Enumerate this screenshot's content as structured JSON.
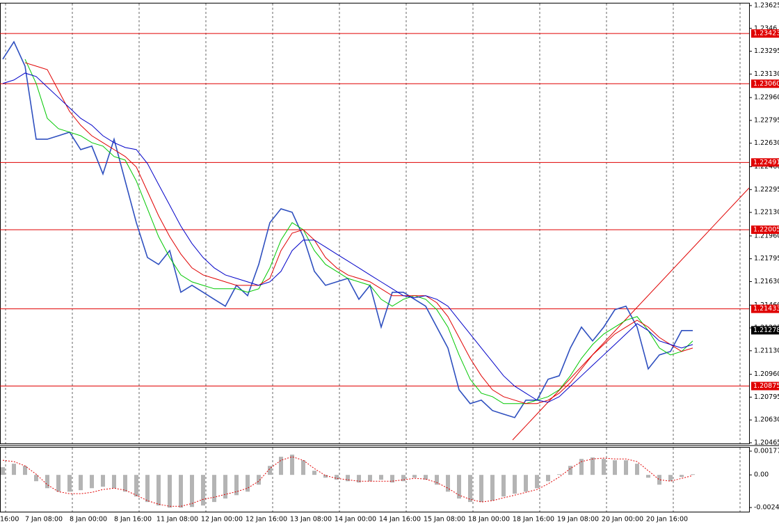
{
  "chart_data": {
    "type": "line",
    "x_labels": [
      "16:00",
      "7 Jan 08:00",
      "8 Jan 00:00",
      "8 Jan 16:00",
      "11 Jan 08:00",
      "12 Jan 00:00",
      "12 Jan 16:00",
      "13 Jan 08:00",
      "14 Jan 00:00",
      "14 Jan 16:00",
      "15 Jan 08:00",
      "18 Jan 00:00",
      "18 Jan 16:00",
      "19 Jan 08:00",
      "20 Jan 00:00",
      "20 Jan 16:00"
    ],
    "ylim": [
      1.2046,
      1.2364
    ],
    "yticks": [
      1.23625,
      1.2346,
      1.23295,
      {
        "value": 1.2313,
        "label": "1.23130"
      },
      {
        "value": 1.2296,
        "label": "1.22960"
      },
      1.22795,
      {
        "value": 1.2263,
        "label": "1.22630"
      },
      {
        "value": 1.2246,
        "label": "1.22460"
      },
      1.22295,
      {
        "value": 1.2213,
        "label": "1.22130"
      },
      {
        "value": 1.2196,
        "label": "1.21960"
      },
      1.21795,
      {
        "value": 1.2163,
        "label": "1.21630"
      },
      {
        "value": 1.2146,
        "label": "1.21460"
      },
      1.21295,
      {
        "value": 1.2113,
        "label": "1.21130"
      },
      {
        "value": 1.2096,
        "label": "1.20960"
      },
      1.20795,
      {
        "value": 1.2063,
        "label": "1.20630"
      },
      1.20465
    ],
    "levels": [
      1.23423,
      {
        "value": 1.2306,
        "label": "1.23060"
      },
      1.22491,
      1.22005,
      1.21433,
      1.20875
    ],
    "level_color": "#e00000",
    "current_price": 1.21278,
    "series": [
      {
        "color": "#2e4fbf",
        "values": [
          1.23238,
          1.23363,
          1.23187,
          1.22659,
          1.22659,
          1.22684,
          1.2271,
          1.22584,
          1.22609,
          1.22408,
          1.22659,
          1.22357,
          1.22056,
          1.21804,
          1.21754,
          1.21854,
          1.21553,
          1.21603,
          1.21553,
          1.21502,
          1.21452,
          1.21603,
          1.21528,
          1.21754,
          1.22056,
          1.22156,
          1.22131,
          1.21955,
          1.21704,
          1.21603,
          1.21628,
          1.21653,
          1.21502,
          1.21603,
          1.21301,
          1.21553,
          1.21553,
          1.21502,
          1.21452,
          1.21301,
          1.2115,
          1.20848,
          1.20748,
          1.20773,
          1.20698,
          1.20672,
          1.20647,
          1.20773,
          1.20773,
          1.20924,
          1.20949,
          1.2115,
          1.21301,
          1.21201,
          1.21301,
          1.21427,
          1.21452,
          1.21301,
          1.20999,
          1.211,
          1.21125,
          1.21276,
          1.21276
        ]
      },
      {
        "color": "#00c800",
        "values": [
          null,
          null,
          1.23237,
          1.23062,
          1.2281,
          1.22735,
          1.2271,
          1.22684,
          1.22634,
          1.22609,
          1.22534,
          1.22508,
          1.22357,
          1.22156,
          1.21955,
          1.21804,
          1.21678,
          1.21628,
          1.21603,
          1.21578,
          1.21578,
          1.21578,
          1.21553,
          1.21578,
          1.21729,
          1.2193,
          1.22056,
          1.22005,
          1.21854,
          1.21754,
          1.21704,
          1.21653,
          1.21628,
          1.21603,
          1.21502,
          1.21452,
          1.21502,
          1.21528,
          1.21502,
          1.21427,
          1.21301,
          1.211,
          1.20924,
          1.20823,
          1.20798,
          1.20748,
          1.20748,
          1.20748,
          1.20773,
          1.20798,
          1.20848,
          1.20949,
          1.21075,
          1.21175,
          1.21251,
          1.21301,
          1.21351,
          1.21377,
          1.21276,
          1.2115,
          1.211,
          1.21125,
          1.21201
        ]
      },
      {
        "color": "#e00000",
        "values": [
          null,
          null,
          1.23212,
          1.23187,
          1.23162,
          1.23011,
          1.2286,
          1.2276,
          1.22684,
          1.22634,
          1.22584,
          1.22534,
          1.22458,
          1.22282,
          1.22106,
          1.21955,
          1.21829,
          1.21729,
          1.21678,
          1.21653,
          1.21628,
          1.21603,
          1.21603,
          1.21603,
          1.21653,
          1.21854,
          1.2198,
          1.22005,
          1.2193,
          1.21804,
          1.21729,
          1.21678,
          1.21653,
          1.21628,
          1.21578,
          1.21528,
          1.21528,
          1.21528,
          1.21528,
          1.21477,
          1.21377,
          1.21226,
          1.21075,
          1.20949,
          1.20848,
          1.20798,
          1.20773,
          1.20748,
          1.20748,
          1.20773,
          1.20823,
          1.20899,
          1.20999,
          1.211,
          1.21175,
          1.21251,
          1.21301,
          1.21351,
          1.21301,
          1.21226,
          1.21175,
          1.21125,
          1.2115
        ]
      },
      {
        "color": "#0000c8",
        "values": [
          1.23062,
          1.23087,
          1.23137,
          1.23112,
          1.23036,
          1.22961,
          1.22886,
          1.2281,
          1.2276,
          1.22684,
          1.22634,
          1.22599,
          1.22584,
          1.22483,
          1.22332,
          1.22182,
          1.22031,
          1.21905,
          1.21804,
          1.21729,
          1.21678,
          1.21653,
          1.21628,
          1.21603,
          1.21628,
          1.21704,
          1.21854,
          1.2193,
          1.2193,
          1.2188,
          1.21829,
          1.21779,
          1.21729,
          1.21678,
          1.21628,
          1.21578,
          1.21528,
          1.21513,
          1.21528,
          1.21502,
          1.21452,
          1.21351,
          1.21251,
          1.2115,
          1.2105,
          1.20949,
          1.20874,
          1.20823,
          1.20773,
          1.20758,
          1.20798,
          1.20874,
          1.20949,
          1.21025,
          1.211,
          1.21175,
          1.21251,
          1.21326,
          1.21276,
          1.21201,
          1.21175,
          1.2115,
          1.21175
        ]
      }
    ],
    "macd": {
      "ylim": [
        -0.00274,
        0.00203
      ],
      "yticks": [
        0.00177,
        {
          "value": 0,
          "label": "0.00"
        },
        -0.00243
      ],
      "histogram_color": "#b4b4b4",
      "signal_color": "#e00000",
      "histogram": [
        0.00057,
        0.00083,
        0.00067,
        -0.00047,
        -0.00099,
        -0.00125,
        -0.00125,
        -0.00114,
        -0.00099,
        -0.00088,
        -0.00099,
        -0.00125,
        -0.00161,
        -0.00202,
        -0.00228,
        -0.00244,
        -0.00244,
        -0.00239,
        -0.00228,
        -0.00202,
        -0.00176,
        -0.00151,
        -0.00125,
        -0.00073,
        0.00067,
        0.00135,
        0.00151,
        0.00109,
        0.00031,
        -0.00021,
        -0.00036,
        -0.00047,
        -0.00057,
        -0.00047,
        -0.00036,
        -0.00057,
        -0.00047,
        -0.00021,
        -0.00036,
        -0.00073,
        -0.00125,
        -0.00176,
        -0.00202,
        -0.00202,
        -0.00192,
        -0.00161,
        -0.0014,
        -0.00125,
        -0.00099,
        -0.00047,
        5e-05,
        0.00067,
        0.00119,
        0.0013,
        0.00119,
        0.00109,
        0.00109,
        0.00083,
        -0.00021,
        -0.00073,
        -0.00047,
        -0.00016,
        5e-05
      ],
      "signal": [
        0.00109,
        0.00099,
        0.00067,
        5e-05,
        -0.00073,
        -0.00125,
        -0.0014,
        -0.0014,
        -0.0013,
        -0.00109,
        -0.00099,
        -0.00114,
        -0.00151,
        -0.00192,
        -0.00218,
        -0.00234,
        -0.00234,
        -0.00213,
        -0.00182,
        -0.00166,
        -0.00145,
        -0.00125,
        -0.00099,
        -0.00047,
        0.00047,
        0.00109,
        0.00135,
        0.00109,
        0.00047,
        -5e-05,
        -0.00026,
        -0.00036,
        -0.00047,
        -0.00047,
        -0.00047,
        -0.00047,
        -0.00036,
        -0.00026,
        -0.00031,
        -0.00057,
        -0.00099,
        -0.00151,
        -0.00182,
        -0.00202,
        -0.00192,
        -0.00171,
        -0.00151,
        -0.0013,
        -0.00109,
        -0.00067,
        -0.00016,
        0.00047,
        0.00099,
        0.00119,
        0.00125,
        0.00119,
        0.00119,
        0.00099,
        0.00031,
        -0.00036,
        -0.00047,
        -0.00026,
        -5e-05
      ]
    }
  }
}
